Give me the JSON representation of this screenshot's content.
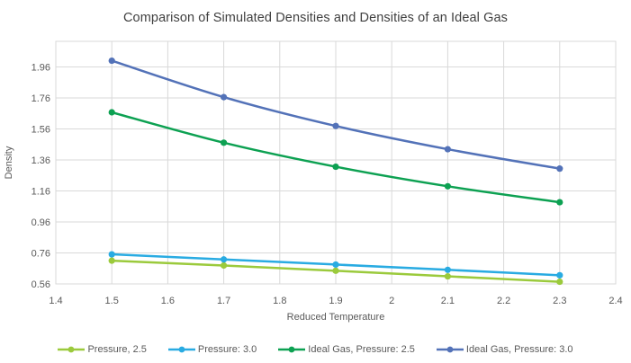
{
  "chart_data": {
    "type": "line",
    "title": "Comparison of Simulated Densities and Densities of an Ideal Gas",
    "xlabel": "Reduced Temperature",
    "ylabel": "Density",
    "x": [
      1.5,
      1.7,
      1.9,
      2.1,
      2.3
    ],
    "series": [
      {
        "name": "Pressure, 2.5",
        "color": "#9BCA3C",
        "values": [
          0.71,
          0.679,
          0.645,
          0.609,
          0.574
        ]
      },
      {
        "name": "Pressure: 3.0",
        "color": "#29ABE2",
        "values": [
          0.751,
          0.718,
          0.685,
          0.651,
          0.616
        ]
      },
      {
        "name": "Ideal Gas, Pressure: 2.5",
        "color": "#0DA152",
        "values": [
          1.667,
          1.471,
          1.316,
          1.19,
          1.087
        ]
      },
      {
        "name": "Ideal Gas, Pressure: 3.0",
        "color": "#5372B8",
        "values": [
          2.0,
          1.765,
          1.579,
          1.429,
          1.304
        ]
      }
    ],
    "xlim": [
      1.4,
      2.4
    ],
    "ylim": [
      0.56,
      2.125
    ],
    "x_ticks": [
      "1.4",
      "1.5",
      "1.6",
      "1.7",
      "1.8",
      "1.9",
      "2",
      "2.1",
      "2.2",
      "2.3",
      "2.4"
    ],
    "y_ticks": [
      "0.56",
      "0.76",
      "0.96",
      "1.16",
      "1.36",
      "1.56",
      "1.76",
      "1.96"
    ],
    "grid": true,
    "line_style": "smooth",
    "marker": "circle",
    "legend_position": "bottom",
    "colors": {
      "gridline": "#D9D9D9",
      "plot_border": "#D9D9D9",
      "tick_text": "#595959",
      "title_text": "#404040",
      "background": "#FFFFFF"
    }
  }
}
